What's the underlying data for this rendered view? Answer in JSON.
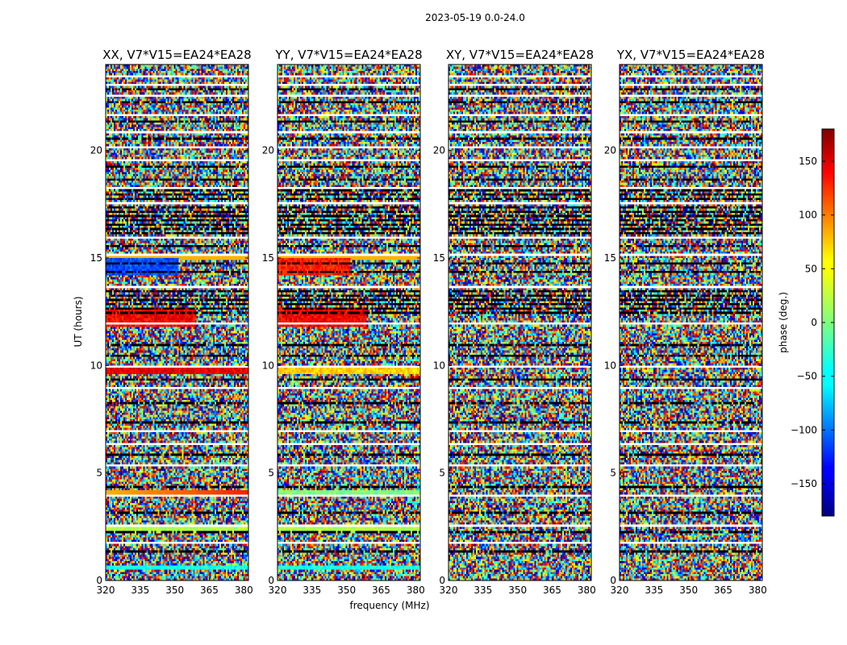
{
  "figure": {
    "suptitle": "2023-05-19 0.0-24.0"
  },
  "chart_data": {
    "type": "heatmap",
    "title": "2023-05-19 0.0-24.0",
    "xlabel": "frequency (MHz)",
    "ylabel": "UT (hours)",
    "xlim": [
      320,
      382
    ],
    "ylim": [
      0,
      24
    ],
    "x_ticks": [
      "320",
      "335",
      "350",
      "365",
      "380"
    ],
    "y_ticks": [
      "0",
      "5",
      "10",
      "15",
      "20"
    ],
    "panels": [
      {
        "name": "XX",
        "title": "XX, V7*V15=EA24*EA28"
      },
      {
        "name": "YY",
        "title": "YY, V7*V15=EA24*EA28"
      },
      {
        "name": "XY",
        "title": "XY, V7*V15=EA24*EA28"
      },
      {
        "name": "YX",
        "title": "YX, V7*V15=EA24*EA28"
      }
    ],
    "colorbar": {
      "label": "phase (deg.)",
      "range": [
        -180,
        180
      ],
      "ticks": [
        "150",
        "100",
        "50",
        "0",
        "−50",
        "−100",
        "−150"
      ],
      "colormap": "jet"
    }
  },
  "colors": {
    "jet_dark_blue": "#00007f",
    "jet_blue": "#0000ff",
    "jet_cyan": "#00ffff",
    "jet_yellow": "#ffff00",
    "jet_red": "#ff0000",
    "jet_dark_red": "#7f0000"
  }
}
